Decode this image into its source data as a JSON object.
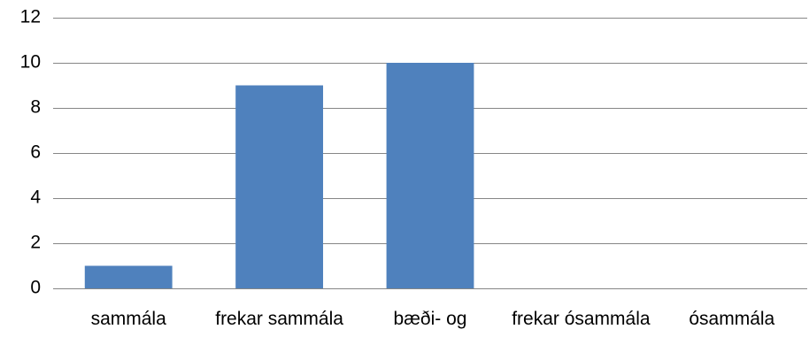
{
  "chart_data": {
    "type": "bar",
    "categories": [
      "sammála",
      "frekar sammála",
      "bæði- og",
      "frekar ósammála",
      "ósammála"
    ],
    "values": [
      1,
      9,
      10,
      0,
      0
    ],
    "color": "#4f81bd",
    "ylim": [
      0,
      12
    ],
    "yticks": [
      0,
      2,
      4,
      6,
      8,
      10,
      12
    ],
    "grid": true
  }
}
